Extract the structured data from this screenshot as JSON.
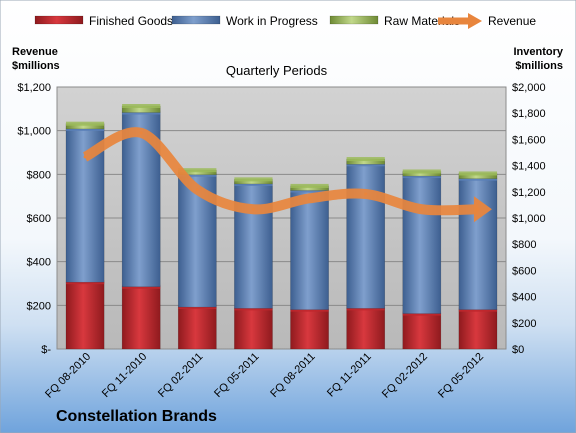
{
  "chart_data": {
    "type": "bar",
    "stacked": true,
    "title": "Quarterly Periods",
    "company": "Constellation Brands",
    "categories": [
      "FQ 08-2010",
      "FQ 11-2010",
      "FQ 02-2011",
      "FQ 05-2011",
      "FQ 08-2011",
      "FQ 11-2011",
      "FQ 02-2012",
      "FQ 05-2012"
    ],
    "series": [
      {
        "name": "Finished Goods",
        "axis": "right",
        "color": "#c0272d",
        "values": [
          510,
          475,
          320,
          310,
          300,
          310,
          270,
          300
        ]
      },
      {
        "name": "Work in Progress",
        "axis": "right",
        "color": "#5a80b8",
        "values": [
          1170,
          1330,
          1010,
          950,
          910,
          1100,
          1050,
          1000
        ]
      },
      {
        "name": "Raw Materials",
        "axis": "right",
        "color": "#9bbb59",
        "values": [
          40,
          50,
          35,
          35,
          35,
          40,
          35,
          40
        ]
      }
    ],
    "line_series": {
      "name": "Revenue",
      "axis": "left",
      "color": "#e8853d",
      "values": [
        880,
        990,
        730,
        640,
        690,
        710,
        640,
        640
      ]
    },
    "left_axis": {
      "title_lines": [
        "Revenue",
        "$millions"
      ],
      "ylim": [
        0,
        1200
      ],
      "ticks": [
        0,
        200,
        400,
        600,
        800,
        1000,
        1200
      ],
      "tick_labels": [
        "$-",
        "$200",
        "$400",
        "$600",
        "$800",
        "$1,000",
        "$1,200"
      ]
    },
    "right_axis": {
      "title_lines": [
        "Inventory",
        "$millions"
      ],
      "ylim": [
        0,
        2000
      ],
      "ticks": [
        0,
        200,
        400,
        600,
        800,
        1000,
        1200,
        1400,
        1600,
        1800,
        2000
      ],
      "tick_labels": [
        "$0",
        "$200",
        "$400",
        "$600",
        "$800",
        "$1,000",
        "$1,200",
        "$1,400",
        "$1,600",
        "$1,800",
        "$2,000"
      ]
    },
    "grid": true,
    "legend_position": "top"
  }
}
